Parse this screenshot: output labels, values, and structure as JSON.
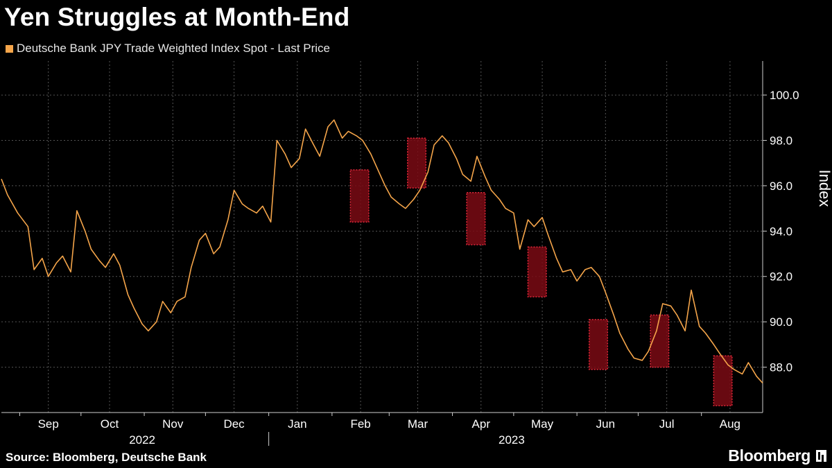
{
  "title": "Yen Struggles at Month-End",
  "legend": {
    "label": "Deutsche Bank JPY Trade Weighted Index Spot - Last Price",
    "color": "#f5a54a"
  },
  "source": "Source: Bloomberg, Deutsche Bank",
  "brand": "Bloomberg",
  "colors": {
    "background": "#000000",
    "series": "#f5a54a",
    "highlight_fill": "#7a0a14",
    "highlight_border": "#e0283a",
    "grid": "#555555",
    "axis": "#cfcfcf"
  },
  "chart_data": {
    "type": "line",
    "title": "Yen Struggles at Month-End",
    "ylabel": "Index",
    "ylim": [
      86.0,
      101.5
    ],
    "yticks": [
      88.0,
      90.0,
      92.0,
      94.0,
      96.0,
      98.0,
      100.0
    ],
    "ytick_labels": [
      "88.0",
      "90.0",
      "92.0",
      "94.0",
      "96.0",
      "98.0",
      "100.0"
    ],
    "xlim": [
      "2022-08-23",
      "2023-08-31"
    ],
    "x_month_ticks": [
      "2022-09-01",
      "2022-10-01",
      "2022-11-01",
      "2022-12-01",
      "2023-01-01",
      "2023-02-01",
      "2023-03-01",
      "2023-04-01",
      "2023-05-01",
      "2023-06-01",
      "2023-07-01",
      "2023-08-01"
    ],
    "x_month_labels": [
      "Sep",
      "Oct",
      "Nov",
      "Dec",
      "Jan",
      "Feb",
      "Mar",
      "Apr",
      "May",
      "Jun",
      "Jul",
      "Aug"
    ],
    "x_year_labels": [
      {
        "label": "2022",
        "at": "2022-10-31"
      },
      {
        "label": "2023",
        "at": "2023-04-30"
      }
    ],
    "year_divider": "2023-01-01",
    "grid": true,
    "series": [
      {
        "points": [
          [
            "2022-08-23",
            96.3
          ],
          [
            "2022-08-26",
            95.6
          ],
          [
            "2022-08-31",
            94.8
          ],
          [
            "2022-09-05",
            94.2
          ],
          [
            "2022-09-08",
            92.3
          ],
          [
            "2022-09-12",
            92.8
          ],
          [
            "2022-09-15",
            92.0
          ],
          [
            "2022-09-19",
            92.6
          ],
          [
            "2022-09-22",
            92.9
          ],
          [
            "2022-09-26",
            92.2
          ],
          [
            "2022-09-29",
            94.9
          ],
          [
            "2022-10-03",
            94.0
          ],
          [
            "2022-10-06",
            93.2
          ],
          [
            "2022-10-10",
            92.7
          ],
          [
            "2022-10-13",
            92.4
          ],
          [
            "2022-10-17",
            93.0
          ],
          [
            "2022-10-20",
            92.5
          ],
          [
            "2022-10-24",
            91.2
          ],
          [
            "2022-10-27",
            90.6
          ],
          [
            "2022-10-31",
            89.9
          ],
          [
            "2022-11-03",
            89.6
          ],
          [
            "2022-11-07",
            90.0
          ],
          [
            "2022-11-10",
            90.9
          ],
          [
            "2022-11-14",
            90.4
          ],
          [
            "2022-11-17",
            90.9
          ],
          [
            "2022-11-21",
            91.1
          ],
          [
            "2022-11-24",
            92.4
          ],
          [
            "2022-11-28",
            93.6
          ],
          [
            "2022-12-01",
            93.9
          ],
          [
            "2022-12-05",
            93.0
          ],
          [
            "2022-12-08",
            93.3
          ],
          [
            "2022-12-12",
            94.5
          ],
          [
            "2022-12-15",
            95.8
          ],
          [
            "2022-12-19",
            95.2
          ],
          [
            "2022-12-22",
            95.0
          ],
          [
            "2022-12-26",
            94.8
          ],
          [
            "2022-12-29",
            95.1
          ],
          [
            "2023-01-02",
            94.4
          ],
          [
            "2023-01-05",
            98.0
          ],
          [
            "2023-01-09",
            97.4
          ],
          [
            "2023-01-12",
            96.8
          ],
          [
            "2023-01-16",
            97.2
          ],
          [
            "2023-01-19",
            98.5
          ],
          [
            "2023-01-23",
            97.8
          ],
          [
            "2023-01-26",
            97.3
          ],
          [
            "2023-01-30",
            98.6
          ],
          [
            "2023-02-02",
            98.9
          ],
          [
            "2023-02-06",
            98.1
          ],
          [
            "2023-02-09",
            98.4
          ],
          [
            "2023-02-13",
            98.2
          ],
          [
            "2023-02-16",
            98.0
          ],
          [
            "2023-02-20",
            97.4
          ],
          [
            "2023-02-23",
            96.8
          ],
          [
            "2023-02-27",
            96.0
          ],
          [
            "2023-03-02",
            95.5
          ],
          [
            "2023-03-06",
            95.2
          ],
          [
            "2023-03-09",
            95.0
          ],
          [
            "2023-03-13",
            95.4
          ],
          [
            "2023-03-16",
            95.8
          ],
          [
            "2023-03-20",
            96.6
          ],
          [
            "2023-03-23",
            97.8
          ],
          [
            "2023-03-27",
            98.2
          ],
          [
            "2023-03-30",
            97.9
          ],
          [
            "2023-04-03",
            97.2
          ],
          [
            "2023-04-06",
            96.5
          ],
          [
            "2023-04-10",
            96.2
          ],
          [
            "2023-04-13",
            97.3
          ],
          [
            "2023-04-17",
            96.4
          ],
          [
            "2023-04-20",
            95.8
          ],
          [
            "2023-04-24",
            95.4
          ],
          [
            "2023-04-27",
            95.0
          ],
          [
            "2023-05-01",
            94.8
          ],
          [
            "2023-05-04",
            93.2
          ],
          [
            "2023-05-08",
            94.5
          ],
          [
            "2023-05-11",
            94.2
          ],
          [
            "2023-05-15",
            94.6
          ],
          [
            "2023-05-18",
            93.8
          ],
          [
            "2023-05-22",
            92.8
          ],
          [
            "2023-05-25",
            92.2
          ],
          [
            "2023-05-29",
            92.3
          ],
          [
            "2023-06-01",
            91.8
          ],
          [
            "2023-06-05",
            92.3
          ],
          [
            "2023-06-08",
            92.4
          ],
          [
            "2023-06-12",
            92.0
          ],
          [
            "2023-06-15",
            91.3
          ],
          [
            "2023-06-19",
            90.3
          ],
          [
            "2023-06-22",
            89.5
          ],
          [
            "2023-06-26",
            88.8
          ],
          [
            "2023-06-29",
            88.4
          ],
          [
            "2023-07-03",
            88.3
          ],
          [
            "2023-07-06",
            88.7
          ],
          [
            "2023-07-10",
            89.6
          ],
          [
            "2023-07-13",
            90.8
          ],
          [
            "2023-07-17",
            90.7
          ],
          [
            "2023-07-20",
            90.3
          ],
          [
            "2023-07-24",
            89.6
          ],
          [
            "2023-07-27",
            91.4
          ],
          [
            "2023-07-31",
            89.8
          ],
          [
            "2023-08-03",
            89.5
          ],
          [
            "2023-08-07",
            89.0
          ],
          [
            "2023-08-10",
            88.6
          ],
          [
            "2023-08-14",
            88.1
          ],
          [
            "2023-08-17",
            87.9
          ],
          [
            "2023-08-21",
            87.7
          ],
          [
            "2023-08-24",
            88.2
          ],
          [
            "2023-08-28",
            87.6
          ],
          [
            "2023-08-31",
            87.3
          ]
        ]
      }
    ],
    "highlight_boxes": [
      {
        "x0": "2023-02-10",
        "x1": "2023-02-19",
        "y0": 94.4,
        "y1": 96.7
      },
      {
        "x0": "2023-03-10",
        "x1": "2023-03-19",
        "y0": 95.9,
        "y1": 98.1
      },
      {
        "x0": "2023-04-08",
        "x1": "2023-04-17",
        "y0": 93.4,
        "y1": 95.7
      },
      {
        "x0": "2023-05-08",
        "x1": "2023-05-17",
        "y0": 91.1,
        "y1": 93.3
      },
      {
        "x0": "2023-06-07",
        "x1": "2023-06-16",
        "y0": 87.9,
        "y1": 90.1
      },
      {
        "x0": "2023-07-07",
        "x1": "2023-07-16",
        "y0": 88.0,
        "y1": 90.3
      },
      {
        "x0": "2023-08-07",
        "x1": "2023-08-16",
        "y0": 86.3,
        "y1": 88.5
      }
    ]
  }
}
